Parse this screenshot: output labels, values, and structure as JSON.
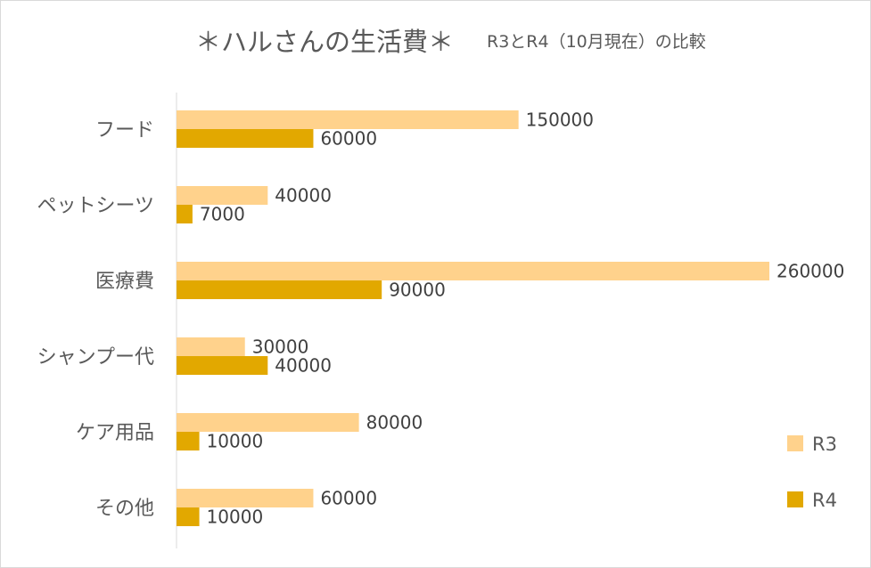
{
  "chart_data": {
    "type": "bar",
    "orientation": "horizontal",
    "title": "＊ハルさんの生活費＊",
    "subtitle": "R3とR4（10月現在）の比較",
    "categories": [
      "フード",
      "ペットシーツ",
      "医療費",
      "シャンプー代",
      "ケア用品",
      "その他"
    ],
    "series": [
      {
        "name": "R3",
        "values": [
          150000,
          40000,
          260000,
          30000,
          80000,
          60000
        ],
        "color": "#ffd28c"
      },
      {
        "name": "R4",
        "values": [
          60000,
          7000,
          90000,
          40000,
          10000,
          10000
        ],
        "color": "#e2a800"
      }
    ],
    "xlim": [
      0,
      260000
    ],
    "grid": false,
    "legend_position": "right",
    "data_labels": true
  }
}
